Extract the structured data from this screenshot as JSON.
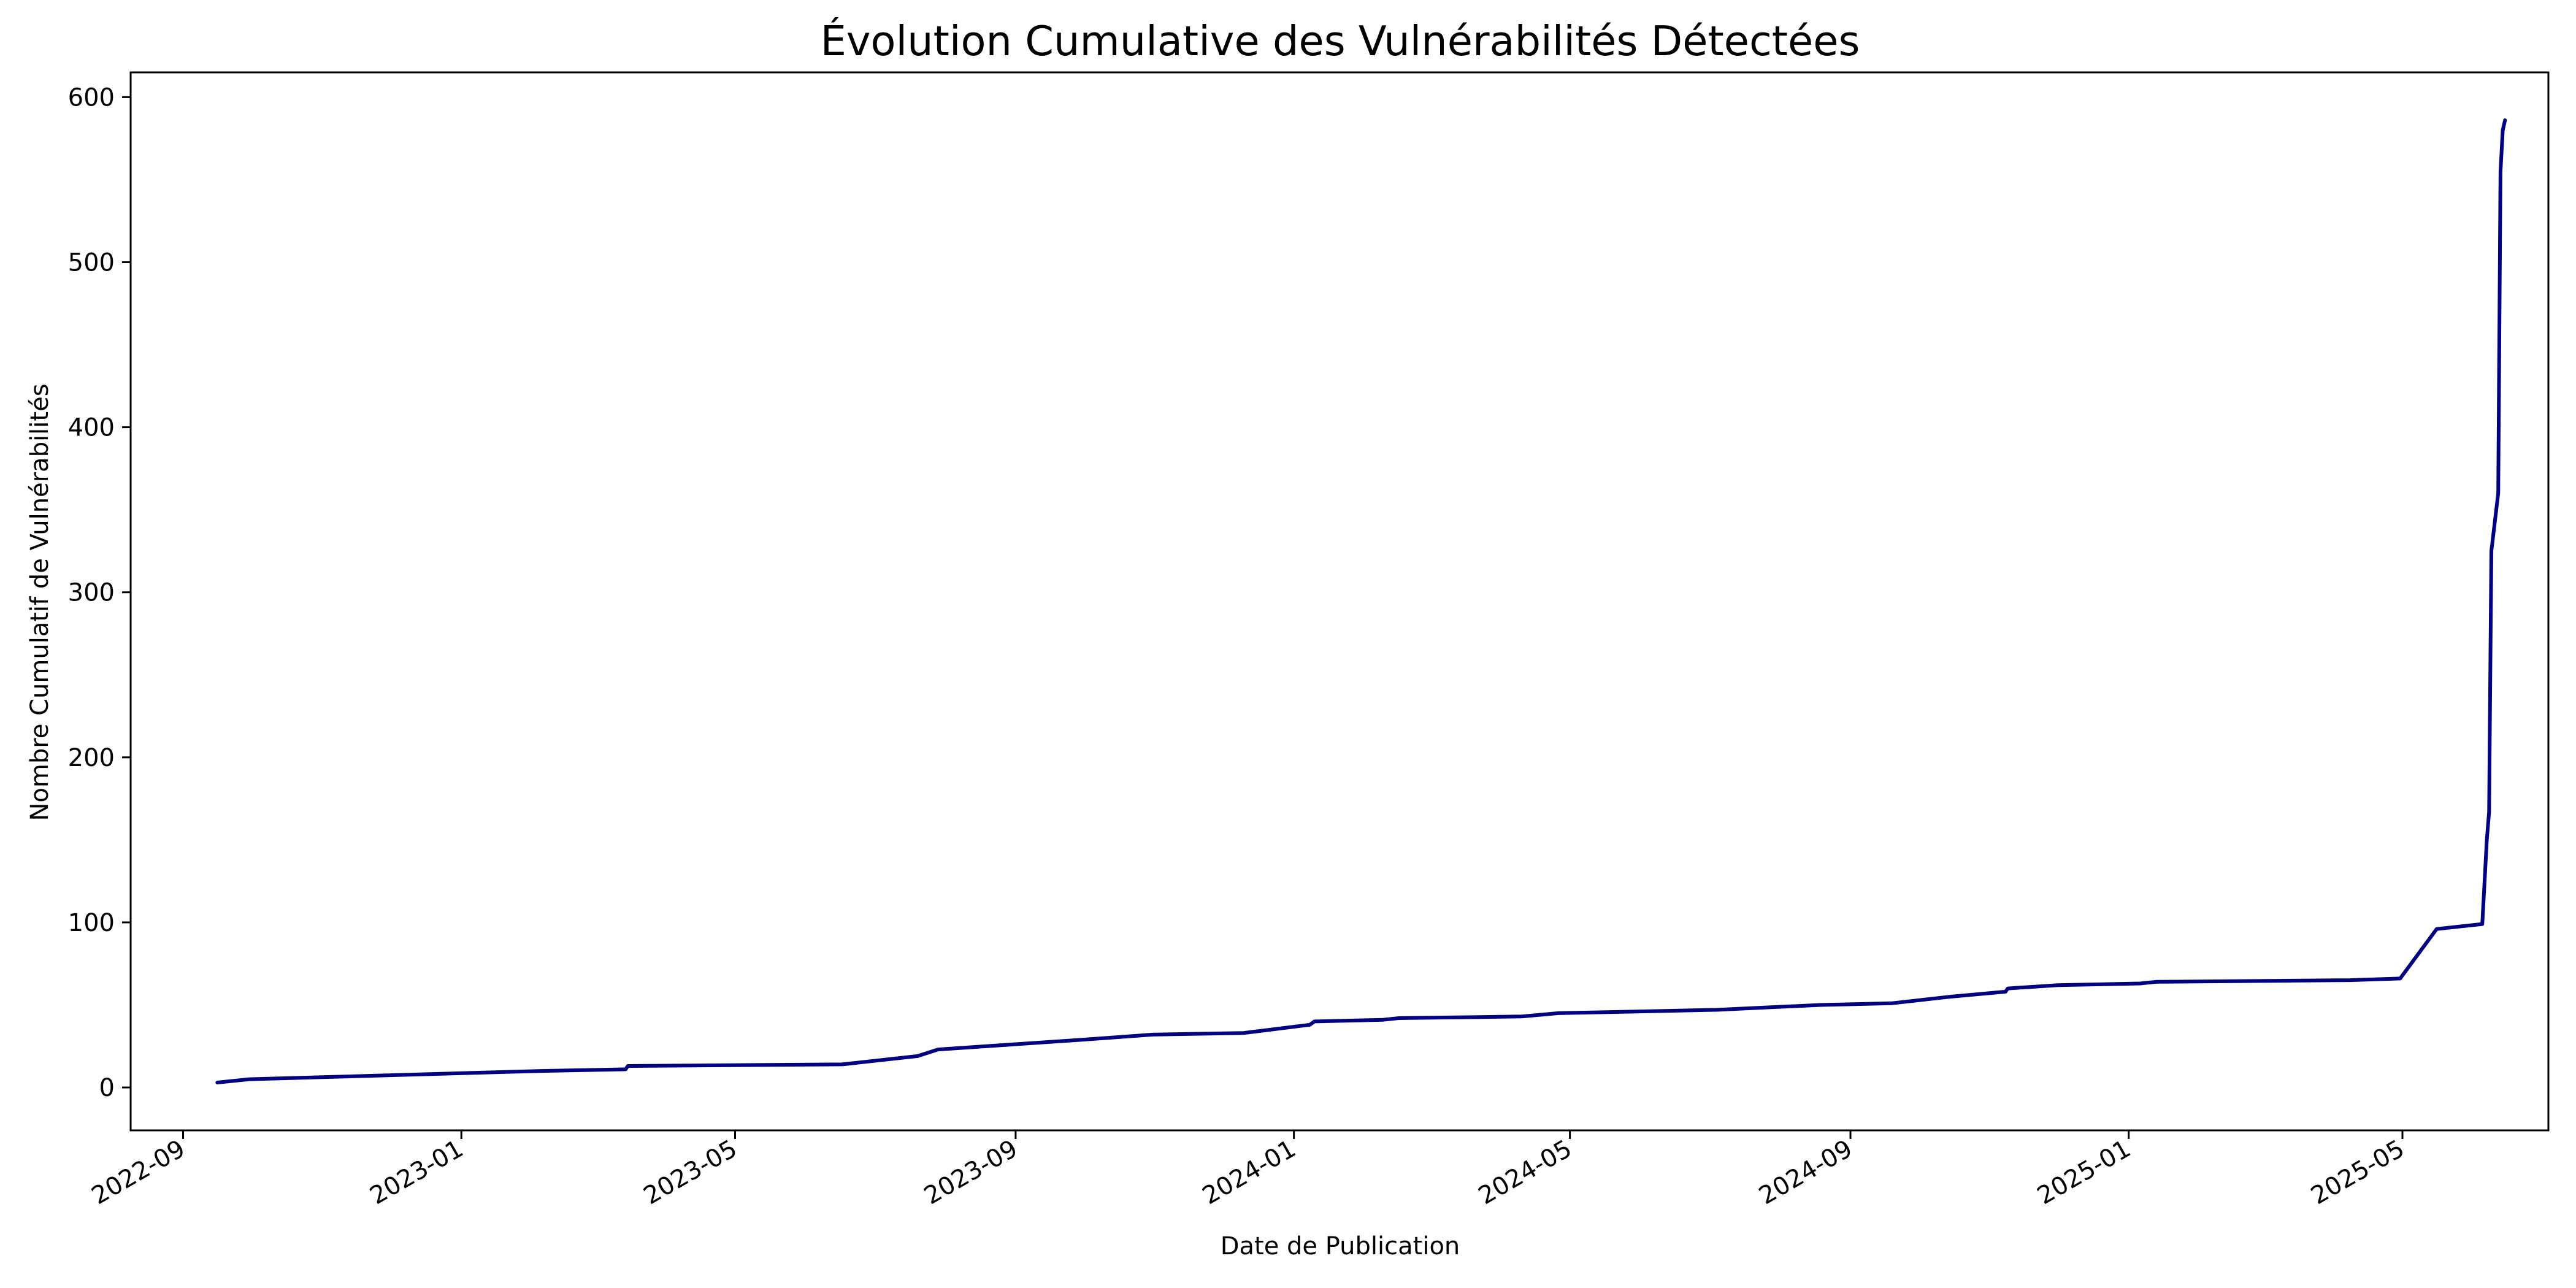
{
  "chart_data": {
    "type": "line",
    "title": "Évolution Cumulative des Vulnérabilités Détectées",
    "xlabel": "Date de Publication",
    "ylabel": "Nombre Cumulatif de Vulnérabilités",
    "x_axis": "date",
    "xlim": [
      "2022-08-09",
      "2025-07-04"
    ],
    "ylim": [
      -26,
      615
    ],
    "x_ticks": [
      "2022-09",
      "2023-01",
      "2023-05",
      "2023-09",
      "2024-01",
      "2024-05",
      "2024-09",
      "2025-01",
      "2025-05"
    ],
    "y_ticks": [
      0,
      100,
      200,
      300,
      400,
      500,
      600
    ],
    "grid": false,
    "legend": "none",
    "colors": {
      "line": "#000080",
      "axes": "#000000",
      "background": "#ffffff"
    },
    "series": [
      {
        "x": [
          "2022-09-16",
          "2022-09-30",
          "2023-02-05",
          "2023-03-14",
          "2023-03-15",
          "2023-06-17",
          "2023-07-20",
          "2023-07-29",
          "2023-10-01",
          "2023-10-31",
          "2023-12-10",
          "2024-01-08",
          "2024-01-10",
          "2024-02-09",
          "2024-02-16",
          "2024-04-10",
          "2024-04-26",
          "2024-07-04",
          "2024-08-19",
          "2024-09-19",
          "2024-10-15",
          "2024-11-08",
          "2024-11-09",
          "2024-12-01",
          "2025-01-06",
          "2025-01-13",
          "2025-04-08",
          "2025-04-30",
          "2025-05-16",
          "2025-06-05",
          "2025-06-07",
          "2025-06-08",
          "2025-06-09",
          "2025-06-12",
          "2025-06-13",
          "2025-06-14",
          "2025-06-15"
        ],
        "y": [
          3,
          5,
          10,
          11,
          13,
          14,
          19,
          23,
          29,
          32,
          33,
          38,
          40,
          41,
          42,
          43,
          45,
          47,
          50,
          51,
          55,
          58,
          60,
          62,
          63,
          64,
          65,
          66,
          96,
          99,
          150,
          167,
          325,
          360,
          555,
          580,
          586
        ]
      }
    ]
  }
}
